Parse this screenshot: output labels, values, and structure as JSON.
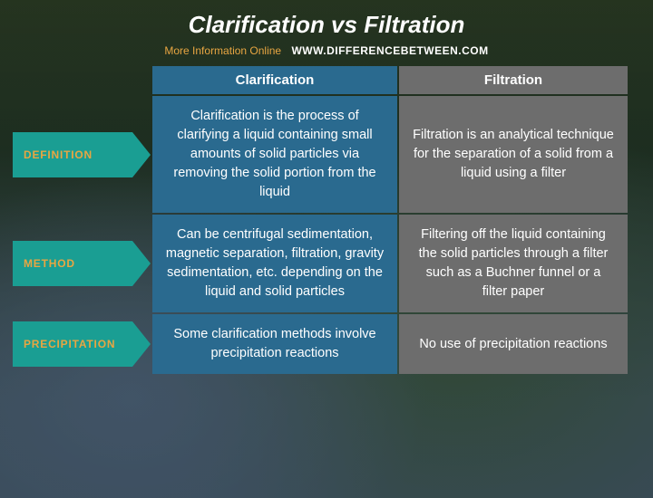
{
  "title": "Clarification vs Filtration",
  "subtitle": {
    "more": "More Information  Online",
    "url": "WWW.DIFFERENCEBETWEEN.COM"
  },
  "columns": {
    "left": "Clarification",
    "right": "Filtration"
  },
  "rows": {
    "definition": {
      "label": "DEFINITION",
      "left": "Clarification is the process of clarifying a liquid containing small amounts of solid particles via removing the solid portion from the liquid",
      "right": "Filtration is an analytical technique for the separation of a solid from a liquid using a filter"
    },
    "method": {
      "label": "METHOD",
      "left": "Can be centrifugal sedimentation, magnetic separation, filtration, gravity sedimentation, etc. depending on the liquid and solid particles",
      "right": "Filtering off the liquid containing the solid particles through a filter such as a Buchner funnel or a filter paper"
    },
    "precipitation": {
      "label": "PRECIPITATION",
      "left": "Some clarification methods involve precipitation reactions",
      "right": "No use of precipitation reactions"
    }
  },
  "colors": {
    "header_left_bg": "#2a6a8f",
    "header_right_bg": "#6d6d6d",
    "arrow_bg": "#1a9e93",
    "label_text": "#e8a642",
    "cell_text": "#ffffff"
  }
}
